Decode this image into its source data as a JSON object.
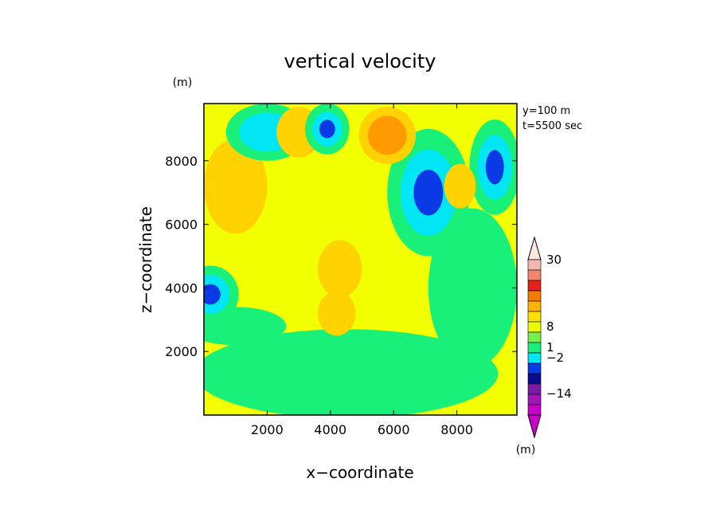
{
  "chart_data": {
    "type": "heatmap",
    "title": "vertical velocity",
    "xlabel": "x−coordinate",
    "ylabel": "z−coordinate",
    "x_unit": "(m)",
    "y_unit": "(m)",
    "annotations": [
      "y=100 m",
      "t=5500 sec"
    ],
    "xlim": [
      0,
      9900
    ],
    "ylim": [
      0,
      9800
    ],
    "x_ticks": [
      2000,
      4000,
      6000,
      8000
    ],
    "y_ticks": [
      2000,
      4000,
      6000,
      8000
    ],
    "x_tick_labels": [
      "2000",
      "4000",
      "6000",
      "8000"
    ],
    "y_tick_labels": [
      "2000",
      "4000",
      "6000",
      "8000"
    ],
    "colorbar": {
      "unit": "(m)",
      "levels_labels": [
        "30",
        "8",
        "1",
        "−2",
        "−14"
      ],
      "colors_top_to_bottom": [
        "#f2b8ae",
        "#f08672",
        "#e8201c",
        "#f07c00",
        "#ffb400",
        "#ffe000",
        "#e8ff00",
        "#7af04e",
        "#19f07a",
        "#00e6f5",
        "#0a3ae6",
        "#0a0a8c",
        "#7a1aa6",
        "#a016b4",
        "#c800c8"
      ]
    },
    "fields": [
      {
        "level": "background",
        "value_range": "-1..1",
        "color": "#f2ff00"
      },
      {
        "level": "negative -2..-1",
        "color": "#19f07a"
      },
      {
        "level": "negative -6..-2",
        "color": "#00e6f5"
      },
      {
        "level": "negative < -6",
        "color": "#0a3ae6"
      },
      {
        "level": "positive 1..3",
        "color": "#ffd200"
      },
      {
        "level": "positive 3..8",
        "color": "#ff9a00"
      }
    ],
    "blobs": [
      {
        "sign": "up",
        "x": 5800,
        "z": 8800,
        "rx": 900,
        "rz": 900,
        "level": 2
      },
      {
        "sign": "up",
        "x": 1000,
        "z": 7200,
        "rx": 1000,
        "rz": 1500,
        "level": 1
      },
      {
        "sign": "up",
        "x": 4300,
        "z": 4600,
        "rx": 700,
        "rz": 900,
        "level": 1
      },
      {
        "sign": "up",
        "x": 3000,
        "z": 8900,
        "rx": 700,
        "rz": 800,
        "level": 1
      },
      {
        "sign": "up",
        "x": 8100,
        "z": 7200,
        "rx": 500,
        "rz": 700,
        "level": 1
      },
      {
        "sign": "up",
        "x": 4200,
        "z": 3200,
        "rx": 600,
        "rz": 700,
        "level": 1
      },
      {
        "sign": "down",
        "x": 7100,
        "z": 7000,
        "rx": 1300,
        "rz": 2000,
        "level": 3
      },
      {
        "sign": "down",
        "x": 3900,
        "z": 9000,
        "rx": 700,
        "rz": 800,
        "level": 3
      },
      {
        "sign": "down",
        "x": 9200,
        "z": 7800,
        "rx": 800,
        "rz": 1500,
        "level": 3
      },
      {
        "sign": "down",
        "x": 200,
        "z": 3800,
        "rx": 900,
        "rz": 900,
        "level": 3
      },
      {
        "sign": "down",
        "x": 2000,
        "z": 8900,
        "rx": 1300,
        "rz": 900,
        "level": 2
      },
      {
        "sign": "down",
        "x": 4500,
        "z": 1300,
        "rx": 4800,
        "rz": 1400,
        "level": 1
      },
      {
        "sign": "down",
        "x": 1000,
        "z": 2800,
        "rx": 1600,
        "rz": 600,
        "level": 1
      },
      {
        "sign": "down",
        "x": 8500,
        "z": 4000,
        "rx": 1400,
        "rz": 2500,
        "level": 1
      }
    ]
  }
}
